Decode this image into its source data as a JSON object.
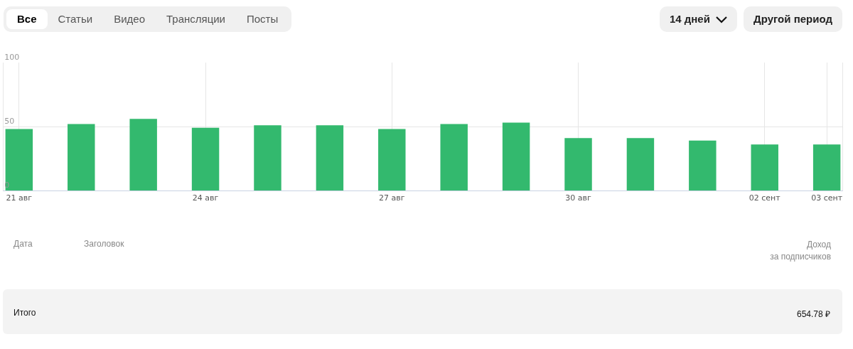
{
  "chart_data": {
    "type": "bar",
    "categories": [
      "21 авг",
      null,
      null,
      "24 авг",
      null,
      null,
      "27 авг",
      null,
      null,
      "30 авг",
      null,
      null,
      "02 сент",
      "03 сент"
    ],
    "values": [
      48,
      52,
      56,
      49,
      51,
      51,
      48,
      52,
      53,
      41,
      41,
      39,
      36,
      36
    ],
    "color": "#33b96e",
    "ylim": [
      0,
      100
    ],
    "yticks": [
      0,
      50,
      100
    ],
    "grid": true,
    "annotations": [
      "Все",
      "Статьи",
      "Видео",
      "Трансляции",
      "Посты",
      "14 дней",
      "Другой период",
      "Дата",
      "Заголовок",
      "Доход\nза подписчиков",
      "Итого",
      "654.78 ₽"
    ]
  }
}
